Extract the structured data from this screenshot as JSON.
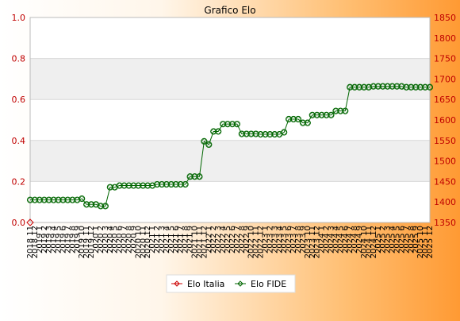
{
  "chart_data": {
    "type": "line",
    "title": "Grafico Elo",
    "left_axis": {
      "ylim": [
        0,
        1
      ],
      "ticks": [
        "0.0",
        "0.2",
        "0.4",
        "0.6",
        "0.8",
        "1.0"
      ]
    },
    "right_axis": {
      "ylim": [
        1350,
        1850
      ],
      "ticks": [
        "1350",
        "1400",
        "1450",
        "1500",
        "1550",
        "1600",
        "1650",
        "1700",
        "1750",
        "1800",
        "1850"
      ]
    },
    "grid": true,
    "legend_position": "bottom-center",
    "x_labels": [
      "2018 11",
      "2018 12",
      "2019 1",
      "2019 2",
      "2019 3",
      "2019 4",
      "2019 5",
      "2019 6",
      "2019 7",
      "2019 8",
      "2019 9",
      "2019 10",
      "2019 11",
      "2019 12",
      "2020 1",
      "2020 2",
      "2020 3",
      "2020 4",
      "2020 5",
      "2020 6",
      "2020 7",
      "2020 8",
      "2020 9",
      "2020 10",
      "2020 11",
      "2020 12",
      "2021 1",
      "2021 2",
      "2021 3",
      "2021 4",
      "2021 5",
      "2021 6",
      "2021 7",
      "2021 8",
      "2021 9",
      "2021 10",
      "2021 11",
      "2021 12",
      "2022 1",
      "2022 2",
      "2022 3",
      "2022 4",
      "2022 5",
      "2022 6",
      "2022 7",
      "2022 8",
      "2022 9",
      "2022 10",
      "2022 11",
      "2022 12",
      "2023 1",
      "2023 2",
      "2023 3",
      "2023 4",
      "2023 5",
      "2023 6",
      "2023 7",
      "2023 8",
      "2023 9",
      "2023 10",
      "2023 11",
      "2023 12",
      "2024 1",
      "2024 2",
      "2024 3",
      "2024 4",
      "2024 5",
      "2024 6",
      "2024 7",
      "2024 8",
      "2024 9",
      "2024 10",
      "2024 11",
      "2024 12",
      "2025 1",
      "2025 2",
      "2025 3",
      "2025 4",
      "2025 5",
      "2025 6",
      "2025 7",
      "2025 8",
      "2025 9",
      "2025 10",
      "2025 11",
      "2025 12"
    ],
    "series": [
      {
        "name": "Elo Italia",
        "color": "#cc0000",
        "axis": "left",
        "values": [
          0
        ]
      },
      {
        "name": "Elo FIDE",
        "color": "#006600",
        "axis": "right",
        "values": [
          1405,
          1405,
          1405,
          1405,
          1405,
          1405,
          1405,
          1405,
          1405,
          1405,
          1405,
          1408,
          1394,
          1394,
          1394,
          1390,
          1390,
          1436,
          1436,
          1440,
          1440,
          1440,
          1440,
          1440,
          1440,
          1440,
          1440,
          1443,
          1443,
          1443,
          1443,
          1443,
          1443,
          1443,
          1462,
          1462,
          1462,
          1548,
          1540,
          1572,
          1572,
          1590,
          1590,
          1590,
          1590,
          1566,
          1566,
          1566,
          1566,
          1565,
          1565,
          1565,
          1565,
          1565,
          1570,
          1602,
          1602,
          1602,
          1593,
          1593,
          1612,
          1612,
          1612,
          1612,
          1612,
          1622,
          1622,
          1622,
          1680,
          1680,
          1680,
          1680,
          1680,
          1682,
          1682,
          1682,
          1682,
          1682,
          1682,
          1682,
          1680,
          1680,
          1680,
          1680,
          1680,
          1680
        ]
      }
    ]
  }
}
